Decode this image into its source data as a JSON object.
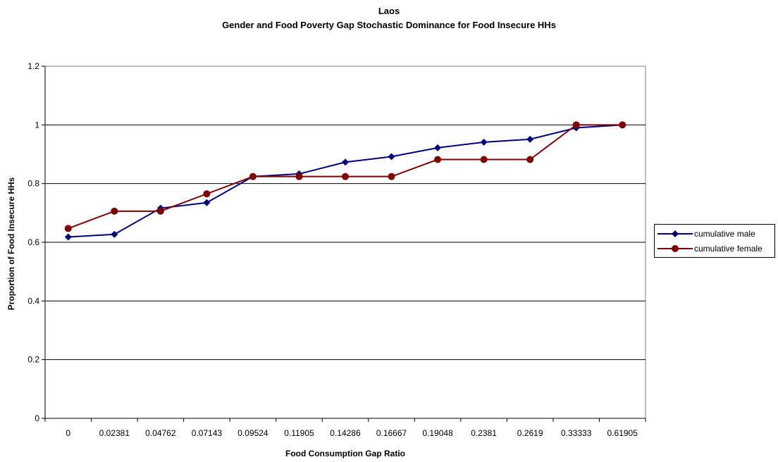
{
  "chart_data": {
    "type": "line",
    "title": "Laos",
    "subtitle": "Gender and Food Poverty Gap Stochastic Dominance for Food Insecure HHs",
    "xlabel": "Food Consumption Gap Ratio",
    "ylabel": "Proportion of Food Insecure HHs",
    "categories": [
      "0",
      "0.02381",
      "0.04762",
      "0.07143",
      "0.09524",
      "0.11905",
      "0.14286",
      "0.16667",
      "0.19048",
      "0.2381",
      "0.2619",
      "0.33333",
      "0.61905"
    ],
    "ylim": [
      0,
      1.2
    ],
    "yticks": [
      "0",
      "0.2",
      "0.4",
      "0.6",
      "0.8",
      "1",
      "1.2"
    ],
    "grid": true,
    "legend_position": "right",
    "series": [
      {
        "name": "cumulative male",
        "color": "#00007f",
        "marker": "diamond",
        "values": [
          0.618,
          0.627,
          0.716,
          0.735,
          0.824,
          0.833,
          0.873,
          0.892,
          0.922,
          0.941,
          0.951,
          0.99,
          1.0
        ]
      },
      {
        "name": "cumulative female",
        "color": "#7f0000",
        "marker": "circle",
        "values": [
          0.647,
          0.706,
          0.706,
          0.765,
          0.824,
          0.824,
          0.824,
          0.824,
          0.882,
          0.882,
          0.882,
          1.0,
          1.0
        ]
      }
    ]
  }
}
